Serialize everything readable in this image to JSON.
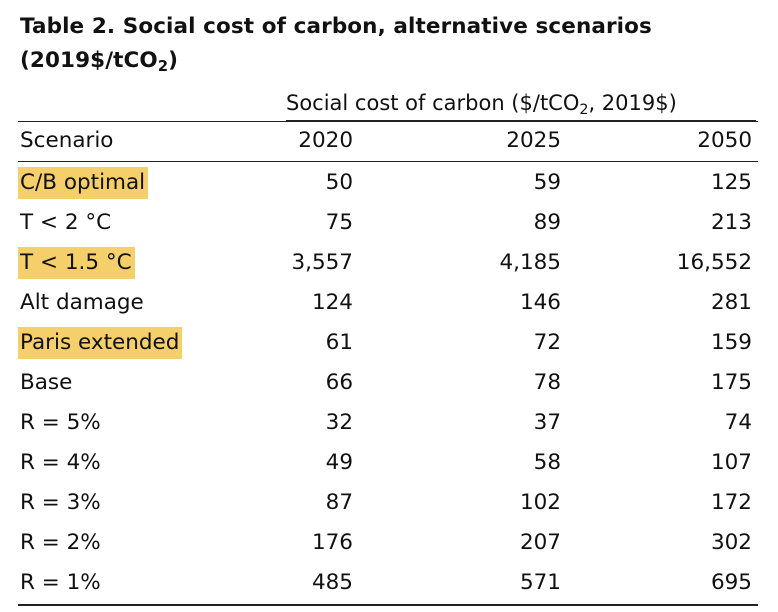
{
  "table": {
    "title": "Table 2.  Social cost of carbon, alternative scenarios",
    "title_line2_prefix": "(2019$/tCO",
    "title_line2_sub": "2",
    "title_line2_suffix": ")",
    "spanner_prefix": "Social cost of carbon ($/tCO",
    "spanner_sub": "2",
    "spanner_suffix": ", 2019$)",
    "columns": [
      "Scenario",
      "2020",
      "2025",
      "2050"
    ],
    "highlight_color": "#f5cf6a",
    "rows": [
      {
        "scenario": "C/B optimal",
        "v2020": "50",
        "v2025": "59",
        "v2050": "125",
        "highlighted": true
      },
      {
        "scenario": "T < 2 °C",
        "v2020": "75",
        "v2025": "89",
        "v2050": "213",
        "highlighted": false
      },
      {
        "scenario": "T < 1.5 °C",
        "v2020": "3,557",
        "v2025": "4,185",
        "v2050": "16,552",
        "highlighted": true
      },
      {
        "scenario": "Alt damage",
        "v2020": "124",
        "v2025": "146",
        "v2050": "281",
        "highlighted": false
      },
      {
        "scenario": "Paris extended",
        "v2020": "61",
        "v2025": "72",
        "v2050": "159",
        "highlighted": true
      },
      {
        "scenario": "Base",
        "v2020": "66",
        "v2025": "78",
        "v2050": "175",
        "highlighted": false
      },
      {
        "scenario": "R = 5%",
        "v2020": "32",
        "v2025": "37",
        "v2050": "74",
        "highlighted": false
      },
      {
        "scenario": "R = 4%",
        "v2020": "49",
        "v2025": "58",
        "v2050": "107",
        "highlighted": false
      },
      {
        "scenario": "R = 3%",
        "v2020": "87",
        "v2025": "102",
        "v2050": "172",
        "highlighted": false
      },
      {
        "scenario": "R = 2%",
        "v2020": "176",
        "v2025": "207",
        "v2050": "302",
        "highlighted": false
      },
      {
        "scenario": "R = 1%",
        "v2020": "485",
        "v2025": "571",
        "v2050": "695",
        "highlighted": false
      }
    ]
  }
}
